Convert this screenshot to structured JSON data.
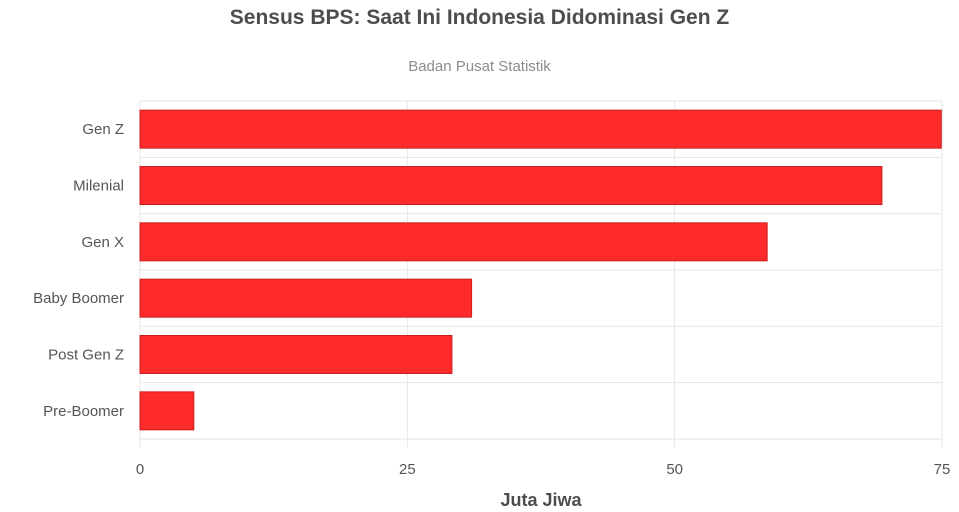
{
  "chart_data": {
    "type": "bar",
    "orientation": "horizontal",
    "title": "Sensus BPS: Saat Ini Indonesia Didominasi Gen Z",
    "subtitle": "Badan Pusat Statistik",
    "xlabel": "Juta Jiwa",
    "ylabel": "",
    "categories": [
      "Gen Z",
      "Milenial",
      "Gen X",
      "Baby Boomer",
      "Post Gen Z",
      "Pre-Boomer"
    ],
    "values": [
      74.93,
      69.38,
      58.65,
      31.01,
      29.17,
      5.03
    ],
    "xlim": [
      0,
      75
    ],
    "ticks": [
      "0",
      "25",
      "50",
      "75"
    ],
    "tick_values": [
      0,
      25,
      50,
      75
    ],
    "grid": true,
    "bar_color": "#ff2a2a",
    "bar_border_color": "#cc1f1f"
  }
}
